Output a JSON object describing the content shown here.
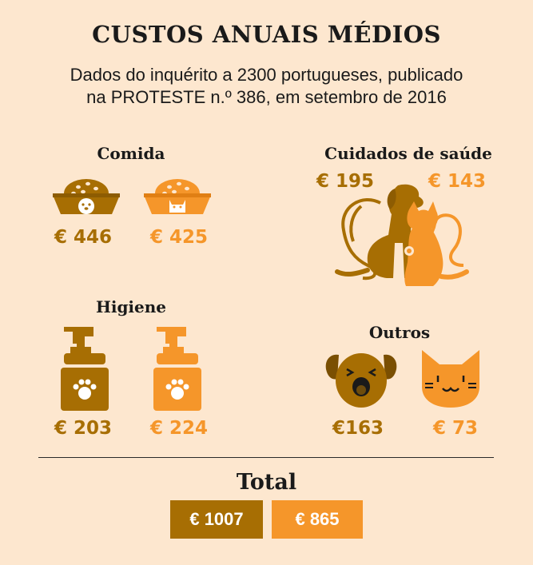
{
  "title": "CUSTOS ANUAIS MÉDIOS",
  "subtitle_line1": "Dados do inquérito a 2300 portugueses, publicado",
  "subtitle_line2": "na PROTESTE n.º 386, em setembro de 2016",
  "colors": {
    "dog": "#a76e03",
    "cat": "#f5962a",
    "background": "#fde7cf"
  },
  "sections": {
    "comida": {
      "label": "Comida",
      "dog": "€ 446",
      "cat": "€ 425",
      "icons": [
        "dog-food-bowl-icon",
        "cat-food-bowl-icon"
      ]
    },
    "saude": {
      "label": "Cuidados de saúde",
      "dog": "€ 195",
      "cat": "€ 143",
      "icons": [
        "dog-cat-stethoscope-icon"
      ]
    },
    "higiene": {
      "label": "Higiene",
      "dog": "€ 203",
      "cat": "€ 224",
      "icons": [
        "dog-soap-dispenser-icon",
        "cat-soap-dispenser-icon"
      ]
    },
    "outros": {
      "label": "Outros",
      "dog": "€163",
      "cat": "€ 73",
      "icons": [
        "dog-face-icon",
        "cat-face-icon"
      ]
    }
  },
  "total": {
    "label": "Total",
    "dog": "€ 1007",
    "cat": "€ 865"
  }
}
